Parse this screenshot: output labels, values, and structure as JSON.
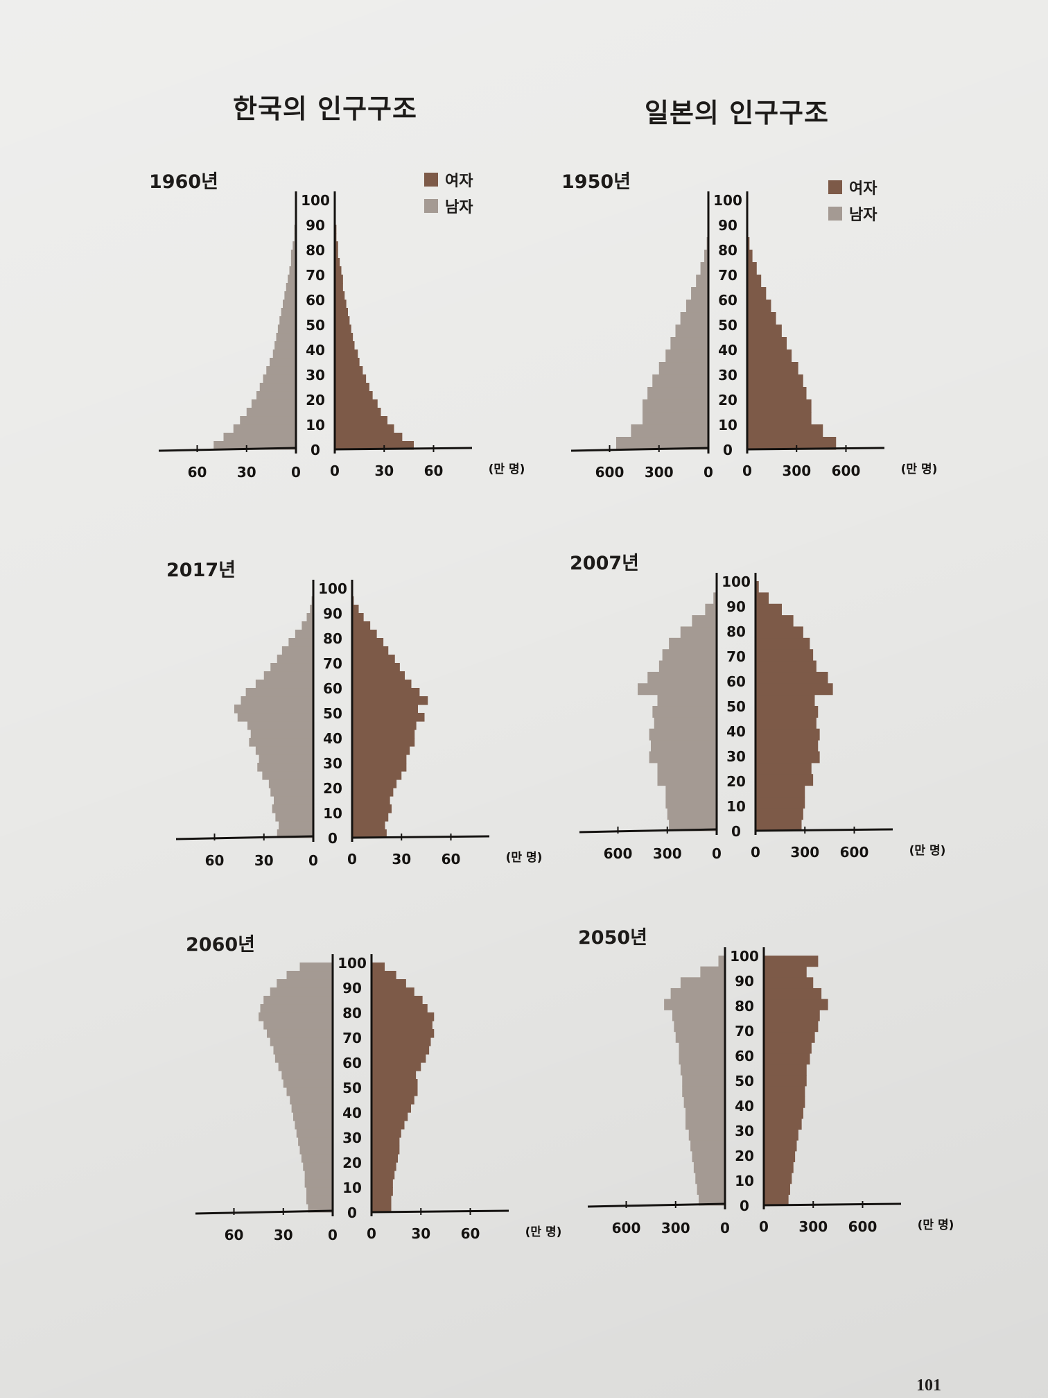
{
  "page": {
    "number": "101"
  },
  "colors": {
    "female": "#7d5a48",
    "male": "#a49a93",
    "axis": "#141210"
  },
  "legend": {
    "female": "여자",
    "male": "남자"
  },
  "columns": {
    "korea_title": "한국의 인구구조",
    "japan_title": "일본의 인구구조"
  },
  "chart_data": [
    {
      "type": "bar",
      "subtype": "population-pyramid",
      "country": "korea",
      "title": "1960년",
      "unit": "(만 명)",
      "age_labels": [
        "0",
        "10",
        "20",
        "30",
        "40",
        "50",
        "60",
        "70",
        "80",
        "90",
        "100"
      ],
      "x_ticks": [
        "60",
        "30",
        "0"
      ],
      "x_max": 80,
      "male": [
        50,
        44,
        38,
        34,
        30,
        27,
        24,
        22,
        20,
        18,
        16,
        14,
        13,
        12,
        11,
        10,
        9,
        8,
        7,
        6,
        5,
        4,
        3,
        3,
        2,
        1,
        1,
        0,
        0,
        0
      ],
      "female": [
        48,
        41,
        36,
        32,
        28,
        26,
        23,
        21,
        19,
        17,
        15,
        14,
        12,
        11,
        10,
        9,
        8,
        7,
        6,
        5,
        5,
        4,
        3,
        2,
        2,
        1,
        1,
        0,
        0,
        0
      ]
    },
    {
      "type": "bar",
      "subtype": "population-pyramid",
      "country": "japan",
      "title": "1950년",
      "unit": "(만 명)",
      "age_labels": [
        "0",
        "10",
        "20",
        "30",
        "40",
        "50",
        "60",
        "70",
        "80",
        "90",
        "100"
      ],
      "x_ticks": [
        "600",
        "300",
        "0"
      ],
      "x_max": 800,
      "male": [
        560,
        470,
        400,
        400,
        370,
        340,
        300,
        260,
        230,
        200,
        170,
        135,
        105,
        75,
        48,
        25,
        10,
        3,
        0,
        0
      ],
      "female": [
        540,
        460,
        390,
        390,
        360,
        340,
        310,
        270,
        240,
        210,
        175,
        145,
        115,
        85,
        58,
        32,
        14,
        4,
        1,
        0
      ]
    },
    {
      "type": "bar",
      "subtype": "population-pyramid",
      "country": "korea",
      "title": "2017년",
      "unit": "(만 명)",
      "age_labels": [
        "0",
        "10",
        "20",
        "30",
        "40",
        "50",
        "60",
        "70",
        "80",
        "90",
        "100"
      ],
      "x_ticks": [
        "60",
        "30",
        "0"
      ],
      "x_max": 80,
      "male": [
        22,
        21,
        23,
        25,
        24,
        26,
        27,
        31,
        34,
        33,
        35,
        39,
        38,
        40,
        46,
        48,
        44,
        41,
        35,
        30,
        26,
        22,
        19,
        15,
        11,
        7,
        4,
        2,
        1,
        0
      ],
      "female": [
        21,
        20,
        22,
        24,
        23,
        25,
        27,
        30,
        33,
        33,
        35,
        38,
        38,
        39,
        44,
        40,
        46,
        41,
        36,
        32,
        29,
        26,
        22,
        19,
        15,
        11,
        7,
        4,
        1,
        0
      ]
    },
    {
      "type": "bar",
      "subtype": "population-pyramid",
      "country": "japan",
      "title": "2007년",
      "unit": "(만 명)",
      "age_labels": [
        "0",
        "10",
        "20",
        "30",
        "40",
        "50",
        "60",
        "70",
        "80",
        "90",
        "100"
      ],
      "x_ticks": [
        "600",
        "300",
        "0"
      ],
      "x_max": 800,
      "male": [
        290,
        300,
        310,
        310,
        360,
        360,
        410,
        400,
        410,
        380,
        390,
        360,
        480,
        420,
        350,
        330,
        290,
        220,
        150,
        70,
        20,
        5
      ],
      "female": [
        280,
        290,
        300,
        300,
        350,
        340,
        390,
        380,
        390,
        370,
        380,
        360,
        470,
        440,
        370,
        350,
        330,
        290,
        230,
        160,
        80,
        20
      ]
    },
    {
      "type": "bar",
      "subtype": "population-pyramid",
      "country": "korea",
      "title": "2060년",
      "unit": "(만 명)",
      "age_labels": [
        "0",
        "10",
        "20",
        "30",
        "40",
        "50",
        "60",
        "70",
        "80",
        "90",
        "100"
      ],
      "x_ticks": [
        "60",
        "30",
        "0"
      ],
      "x_max": 80,
      "male": [
        15,
        16,
        16,
        17,
        17,
        18,
        19,
        20,
        21,
        22,
        23,
        24,
        25,
        26,
        28,
        30,
        31,
        33,
        35,
        36,
        38,
        40,
        42,
        45,
        44,
        42,
        38,
        34,
        28,
        20
      ],
      "female": [
        12,
        12,
        13,
        13,
        14,
        15,
        16,
        17,
        17,
        18,
        20,
        22,
        24,
        26,
        28,
        28,
        27,
        30,
        33,
        35,
        36,
        38,
        37,
        38,
        34,
        31,
        26,
        21,
        15,
        8
      ]
    },
    {
      "type": "bar",
      "subtype": "population-pyramid",
      "country": "japan",
      "title": "2050년",
      "unit": "(만 명)",
      "age_labels": [
        "0",
        "10",
        "20",
        "30",
        "40",
        "50",
        "60",
        "70",
        "80",
        "90",
        "100"
      ],
      "x_ticks": [
        "600",
        "300",
        "0"
      ],
      "x_max": 800,
      "male": [
        160,
        170,
        180,
        190,
        200,
        210,
        220,
        240,
        240,
        250,
        260,
        260,
        270,
        280,
        280,
        300,
        310,
        320,
        370,
        330,
        270,
        150,
        40
      ],
      "female": [
        150,
        160,
        170,
        180,
        190,
        200,
        210,
        230,
        240,
        250,
        250,
        260,
        260,
        280,
        290,
        310,
        330,
        340,
        390,
        350,
        300,
        260,
        330
      ]
    }
  ]
}
